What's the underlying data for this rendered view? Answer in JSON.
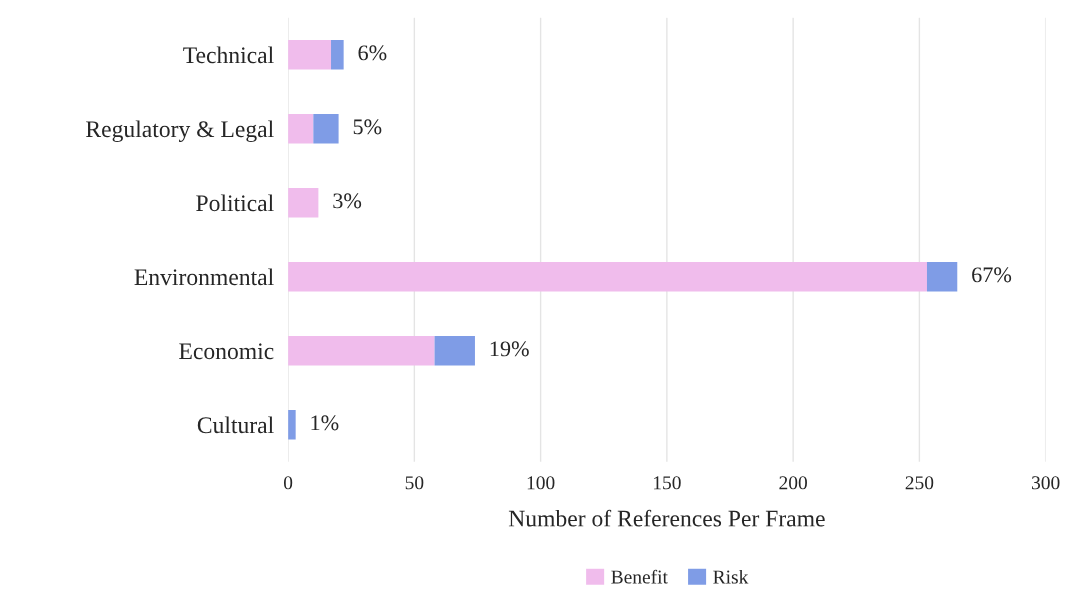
{
  "chart_data": {
    "type": "bar",
    "orientation": "horizontal",
    "stacked": true,
    "categories": [
      "Technical",
      "Regulatory & Legal",
      "Political",
      "Environmental",
      "Economic",
      "Cultural"
    ],
    "series": [
      {
        "name": "Benefit",
        "color": "#f0bcec",
        "values": [
          17,
          10,
          12,
          253,
          58,
          null
        ]
      },
      {
        "name": "Risk",
        "color": "#7f9ce6",
        "values": [
          5,
          10,
          null,
          12,
          16,
          3
        ]
      }
    ],
    "annotations": [
      {
        "text": "6%",
        "x": 22,
        "y": "Technical"
      },
      {
        "text": "5%",
        "x": 20,
        "y": "Regulatory & Legal"
      },
      {
        "text": "3%",
        "x": 12,
        "y": "Political"
      },
      {
        "text": "67%",
        "x": 265,
        "y": "Environmental"
      },
      {
        "text": "19%",
        "x": 74,
        "y": "Economic"
      },
      {
        "text": "1%",
        "x": 3,
        "y": "Cultural"
      }
    ],
    "xlabel": "Number of References Per Frame",
    "xlim": [
      0,
      300
    ],
    "xticks": [
      0,
      50,
      100,
      150,
      200,
      250,
      300
    ],
    "grid": "x",
    "legend": "bottom"
  }
}
